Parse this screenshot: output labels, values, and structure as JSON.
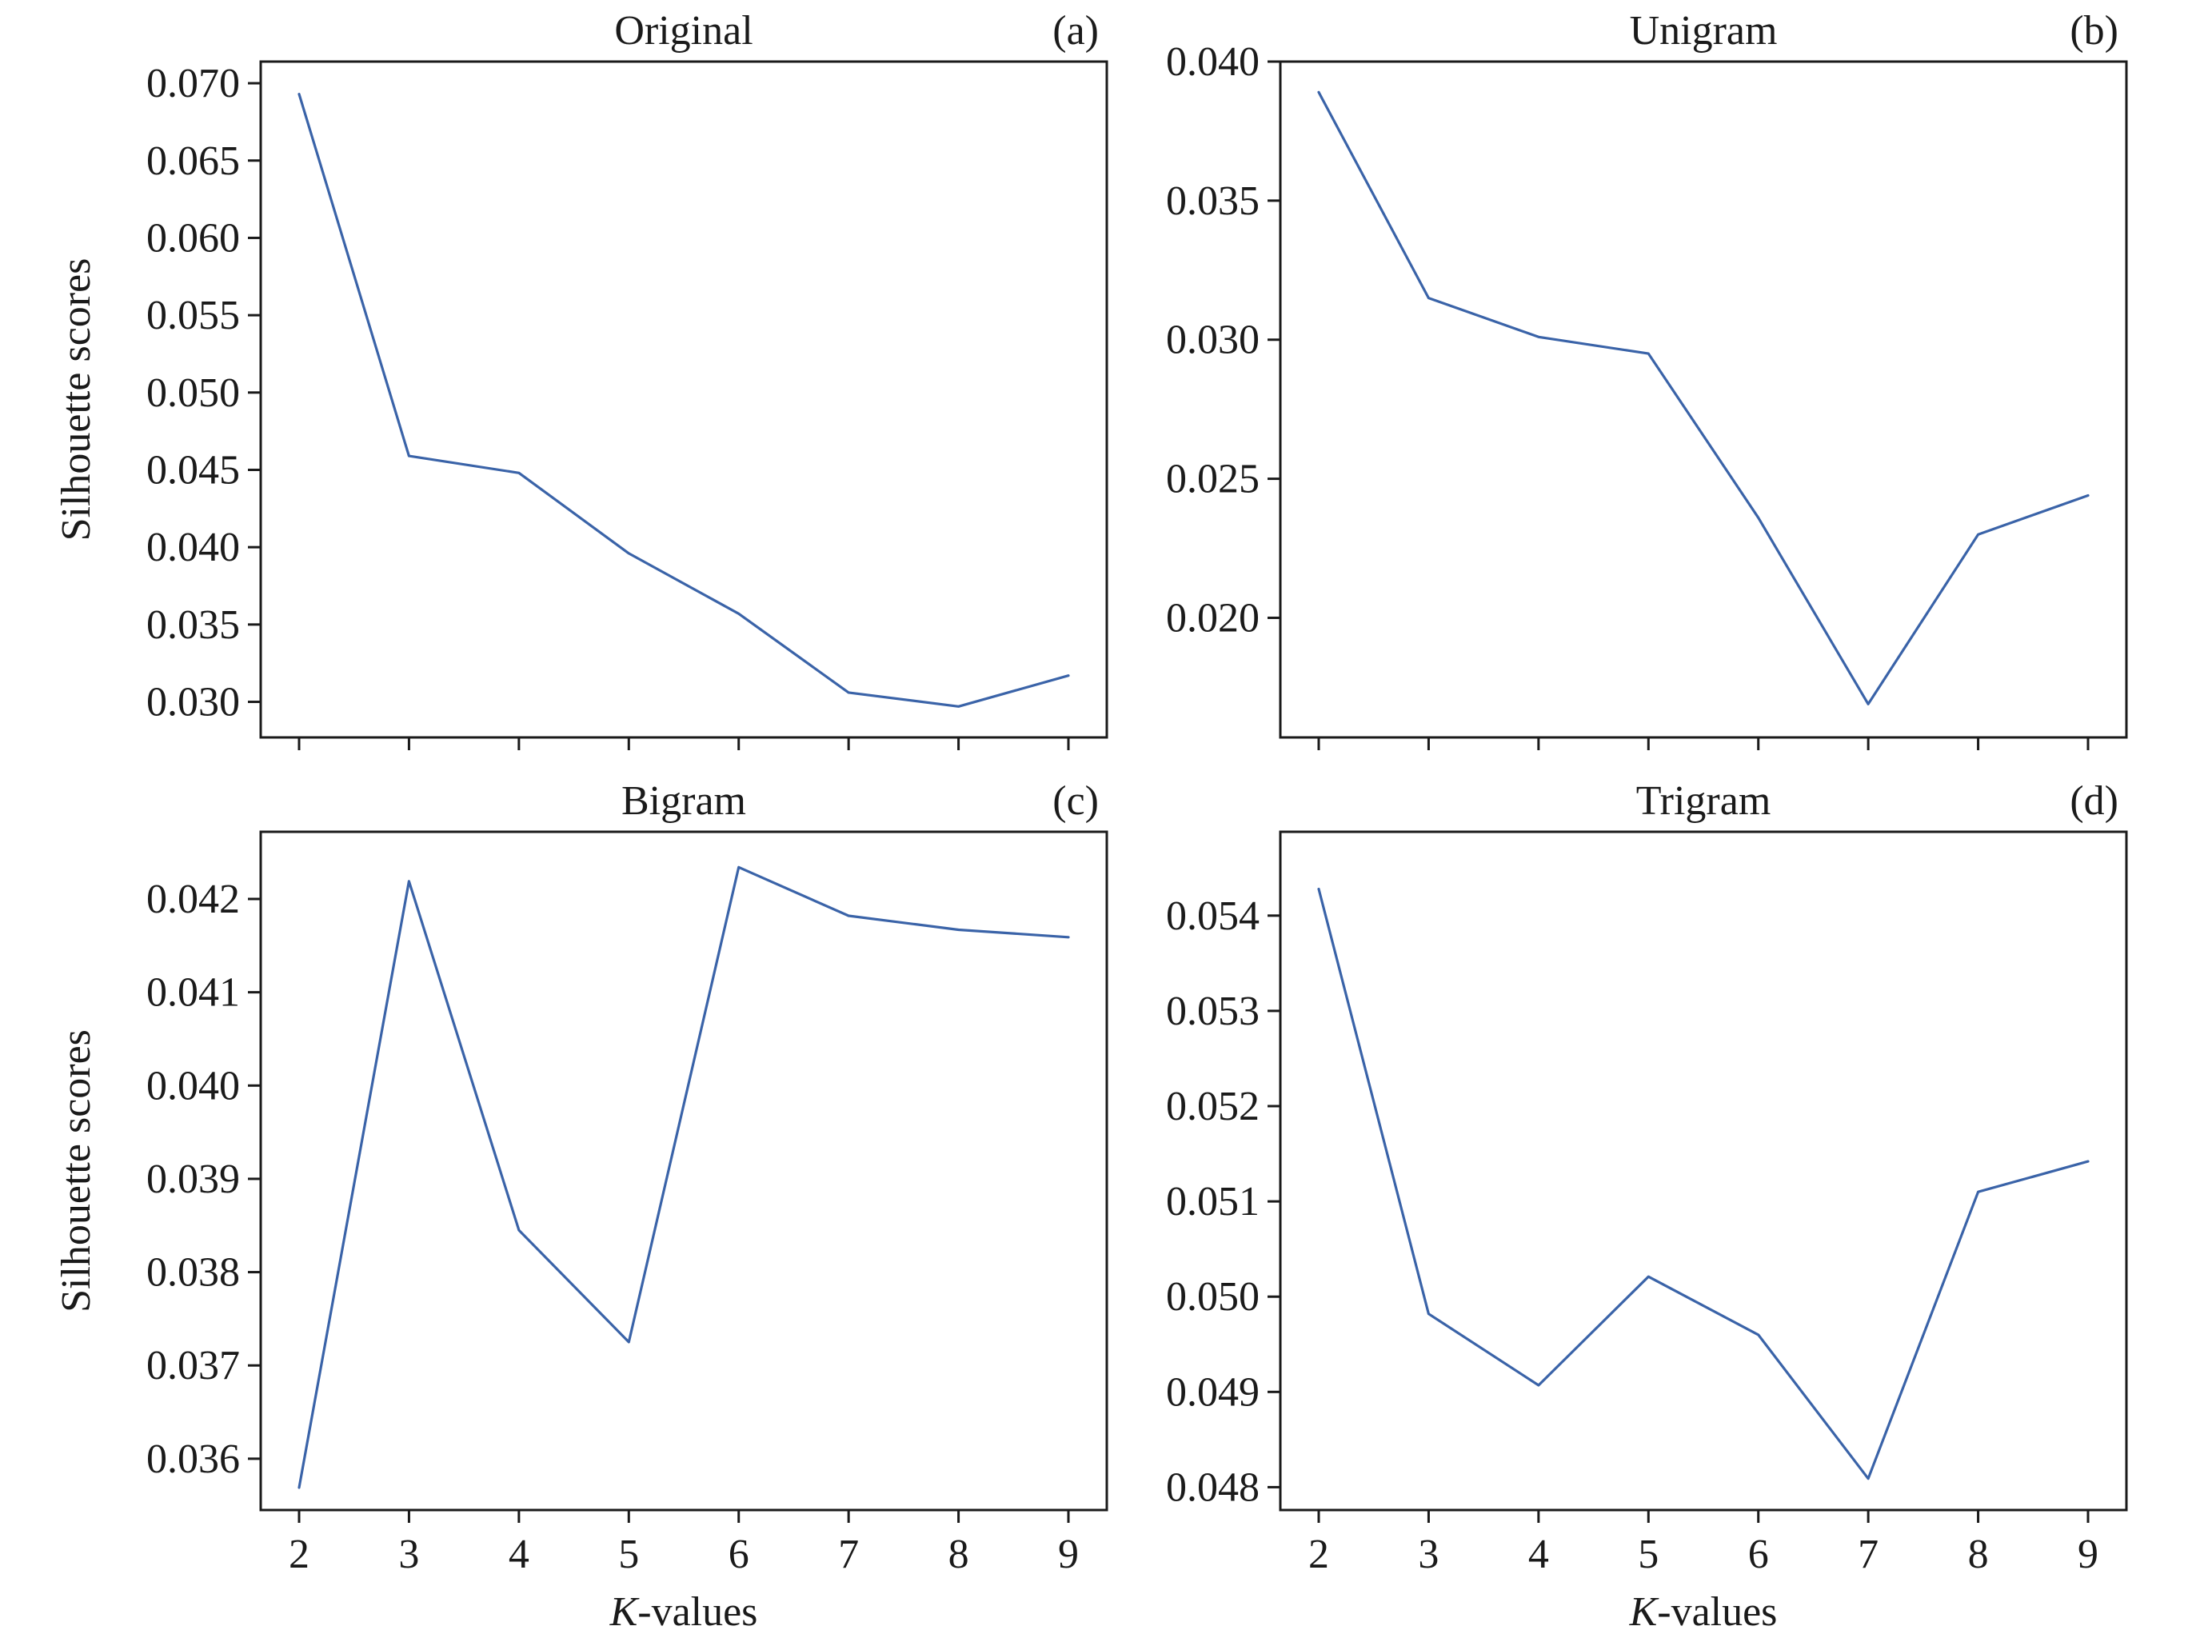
{
  "figure": {
    "xlabel_italic": "K",
    "xlabel_rest": "-values",
    "ylabel": "Silhouette scores"
  },
  "chart_data": [
    {
      "panel": "a",
      "type": "line",
      "title": "Original",
      "letter": "(a)",
      "x": [
        2,
        3,
        4,
        5,
        6,
        7,
        8,
        9
      ],
      "series": [
        {
          "values": [
            0.0693,
            0.0459,
            0.0448,
            0.0396,
            0.0357,
            0.0306,
            0.0297,
            0.0317
          ]
        }
      ],
      "yticks": [
        "0.030",
        "0.035",
        "0.040",
        "0.045",
        "0.050",
        "0.055",
        "0.060",
        "0.065",
        "0.070"
      ],
      "ylim": [
        0.0277,
        0.0714
      ],
      "xticks": [
        "2",
        "3",
        "4",
        "5",
        "6",
        "7",
        "8",
        "9"
      ],
      "show_xtick_labels": false,
      "show_xlabel": false,
      "show_ylabel": true,
      "color": "#3a63a8"
    },
    {
      "panel": "b",
      "type": "line",
      "title": "Unigram",
      "letter": "(b)",
      "x": [
        2,
        3,
        4,
        5,
        6,
        7,
        8,
        9
      ],
      "series": [
        {
          "values": [
            0.0389,
            0.0315,
            0.0301,
            0.0295,
            0.0236,
            0.0169,
            0.023,
            0.0244
          ]
        }
      ],
      "yticks": [
        "0.020",
        "0.025",
        "0.030",
        "0.035",
        "0.040"
      ],
      "ylim": [
        0.0157,
        0.04
      ],
      "xticks": [
        "2",
        "3",
        "4",
        "5",
        "6",
        "7",
        "8",
        "9"
      ],
      "show_xtick_labels": false,
      "show_xlabel": false,
      "show_ylabel": false,
      "color": "#3a63a8"
    },
    {
      "panel": "c",
      "type": "line",
      "title": "Bigram",
      "letter": "(c)",
      "x": [
        2,
        3,
        4,
        5,
        6,
        7,
        8,
        9
      ],
      "series": [
        {
          "values": [
            0.03569,
            0.04219,
            0.03845,
            0.03725,
            0.04234,
            0.04182,
            0.04167,
            0.04159
          ]
        }
      ],
      "yticks": [
        "0.036",
        "0.037",
        "0.038",
        "0.039",
        "0.040",
        "0.041",
        "0.042"
      ],
      "ylim": [
        0.03545,
        0.04272
      ],
      "xticks": [
        "2",
        "3",
        "4",
        "5",
        "6",
        "7",
        "8",
        "9"
      ],
      "show_xtick_labels": true,
      "show_xlabel": true,
      "show_ylabel": true,
      "color": "#3a63a8"
    },
    {
      "panel": "d",
      "type": "line",
      "title": "Trigram",
      "letter": "(d)",
      "x": [
        2,
        3,
        4,
        5,
        6,
        7,
        8,
        9
      ],
      "series": [
        {
          "values": [
            0.05428,
            0.04982,
            0.04907,
            0.05021,
            0.0496,
            0.04809,
            0.0511,
            0.05142
          ]
        }
      ],
      "yticks": [
        "0.048",
        "0.049",
        "0.050",
        "0.051",
        "0.052",
        "0.053",
        "0.054"
      ],
      "ylim": [
        0.04776,
        0.05488
      ],
      "xticks": [
        "2",
        "3",
        "4",
        "5",
        "6",
        "7",
        "8",
        "9"
      ],
      "show_xtick_labels": true,
      "show_xlabel": true,
      "show_ylabel": false,
      "color": "#3a63a8"
    }
  ]
}
